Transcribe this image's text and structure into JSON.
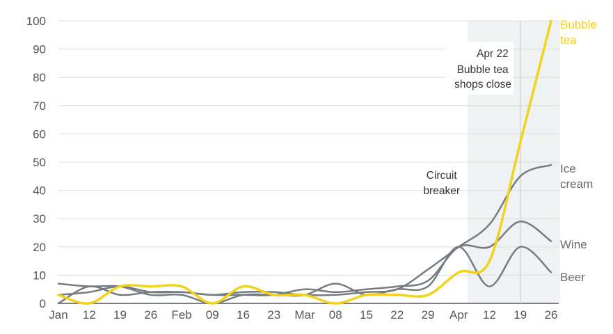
{
  "chart_data": {
    "type": "line",
    "title": "",
    "xlabel": "",
    "ylabel": "",
    "ylim": [
      0,
      100
    ],
    "yticks": [
      0,
      10,
      20,
      30,
      40,
      50,
      60,
      70,
      80,
      90,
      100
    ],
    "grid": "horizontal",
    "x_tick_labels": [
      "Jan",
      "12",
      "19",
      "26",
      "Feb",
      "09",
      "16",
      "23",
      "Mar",
      "08",
      "15",
      "22",
      "29",
      "Apr",
      "12",
      "19",
      "26"
    ],
    "series": [
      {
        "name": "Bubble tea",
        "color": "#f2d21a",
        "values": [
          3,
          0,
          6,
          6,
          6,
          0,
          6,
          3,
          3,
          0,
          3,
          3,
          3,
          11,
          15,
          57,
          100
        ]
      },
      {
        "name": "Ice cream",
        "color": "#757b80",
        "values": [
          3,
          4,
          6,
          4,
          4,
          3,
          4,
          4,
          3,
          3,
          4,
          5,
          12,
          20,
          28,
          45,
          49
        ]
      },
      {
        "name": "Wine",
        "color": "#757b80",
        "values": [
          0,
          6,
          3,
          4,
          4,
          3,
          3,
          3,
          5,
          4,
          5,
          6,
          8,
          20,
          20,
          29,
          22
        ]
      },
      {
        "name": "Beer",
        "color": "#757b80",
        "values": [
          7,
          6,
          6,
          3,
          3,
          0,
          3,
          3,
          3,
          7,
          3,
          5,
          6,
          20,
          6,
          20,
          11
        ]
      }
    ],
    "annotations": {
      "circuit_breaker": {
        "lines": [
          "Circuit",
          "breaker"
        ]
      },
      "shops_close": {
        "lines": [
          "Apr 22",
          "Bubble tea",
          "shops close"
        ]
      }
    },
    "series_labels": {
      "bubble_tea": [
        "Bubble",
        "tea"
      ],
      "ice_cream": [
        "Ice",
        "cream"
      ],
      "wine": [
        "Wine"
      ],
      "beer": [
        "Beer"
      ]
    }
  }
}
